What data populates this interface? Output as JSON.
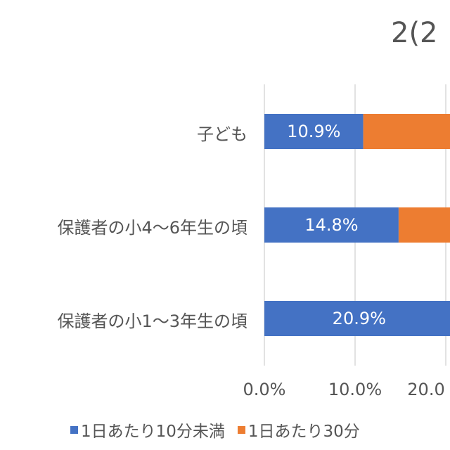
{
  "chart_data": {
    "type": "bar",
    "orientation": "horizontal",
    "stacked": true,
    "title": "2(2",
    "categories": [
      "子ども",
      "保護者の小4～6年生の頃",
      "保護者の小1～3年生の頃"
    ],
    "series": [
      {
        "name": "1日あたり10分未満",
        "color": "#4472C4",
        "values": [
          10.9,
          14.8,
          20.9
        ],
        "labels": [
          "10.9%",
          "14.8%",
          "20.9%"
        ]
      },
      {
        "name": "1日あたり30分",
        "color": "#ED7D31",
        "values": [
          null,
          null,
          null
        ]
      }
    ],
    "x_ticks": [
      "0.0%",
      "10.0%",
      "20.0"
    ],
    "xlim": [
      0,
      20.5
    ],
    "grid": true,
    "legend": "bottom"
  }
}
